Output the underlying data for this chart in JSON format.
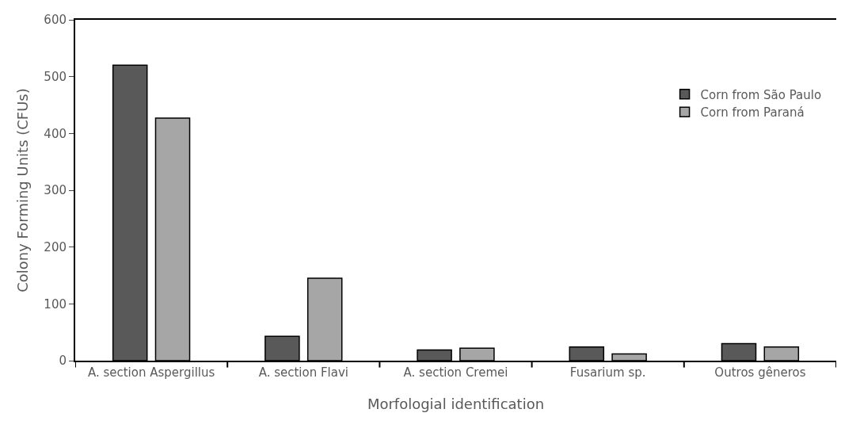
{
  "chart_data": {
    "type": "bar",
    "xlabel": "Morfologial identification",
    "ylabel": "Colony Forming Units (CFUs)",
    "categories": [
      "A. section Aspergillus",
      "A. section Flavi",
      "A. section Cremei",
      "Fusarium sp.",
      "Outros gêneros"
    ],
    "series": [
      {
        "name": "Corn from São Paulo",
        "color": "#595959",
        "values": [
          520,
          43,
          19,
          24,
          30
        ]
      },
      {
        "name": "Corn from Paraná",
        "color": "#a6a6a6",
        "values": [
          427,
          145,
          22,
          12,
          24
        ]
      }
    ],
    "ylim": [
      0,
      600
    ],
    "yticks": [
      0,
      100,
      200,
      300,
      400,
      500,
      600
    ],
    "legend": "top right"
  }
}
